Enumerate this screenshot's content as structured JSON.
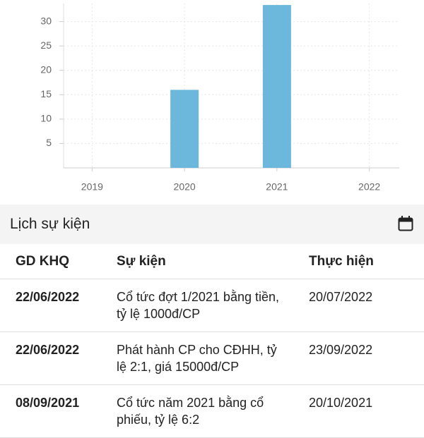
{
  "chart_data": {
    "type": "bar",
    "categories": [
      "2019",
      "2020",
      "2021",
      "2022"
    ],
    "values": [
      0,
      16,
      33.4,
      0
    ],
    "color": "#6bb8dc",
    "ylim": [
      0,
      33.7
    ],
    "yticks": [
      5,
      10,
      15,
      20,
      25,
      30
    ],
    "grid": true
  },
  "section": {
    "title": "Lịch sự kiện"
  },
  "table": {
    "columns": [
      "GD KHQ",
      "Sự kiện",
      "Thực hiện"
    ],
    "rows": [
      [
        "22/06/2022",
        "Cổ tức đợt 1/2021 bằng tiền, tỷ lệ 1000đ/CP",
        "20/07/2022"
      ],
      [
        "22/06/2022",
        "Phát hành CP cho CĐHH, tỷ lệ 2:1, giá 15000đ/CP",
        "23/09/2022"
      ],
      [
        "08/09/2021",
        "Cổ tức năm 2021 bằng cổ phiếu, tỷ lệ 6:2",
        "20/10/2021"
      ]
    ]
  }
}
